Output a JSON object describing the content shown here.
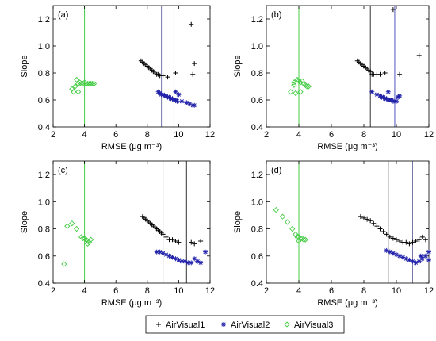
{
  "chart_data": [
    {
      "type": "scatter",
      "panel_label": "(a)",
      "xlabel": "RMSE (μg m⁻³)",
      "ylabel": "Slope",
      "xlim": [
        2,
        12
      ],
      "ylim": [
        0.4,
        1.3
      ],
      "xticks": [
        "2",
        "4",
        "6",
        "8",
        "10",
        "12"
      ],
      "yticks": [
        "0.4",
        "0.6",
        "0.8",
        "1.0",
        "1.2"
      ],
      "vlines": [
        {
          "x": 4.0,
          "color": "#44cc44"
        },
        {
          "x": 8.9,
          "color": "#7777aa"
        },
        {
          "x": 9.7,
          "color": "#7777aa"
        }
      ],
      "series": [
        {
          "marker": "plus",
          "color": "#000000",
          "points": [
            [
              7.6,
              0.89
            ],
            [
              7.7,
              0.88
            ],
            [
              7.8,
              0.87
            ],
            [
              7.9,
              0.86
            ],
            [
              8.0,
              0.85
            ],
            [
              8.1,
              0.84
            ],
            [
              8.2,
              0.83
            ],
            [
              8.3,
              0.82
            ],
            [
              8.4,
              0.81
            ],
            [
              8.5,
              0.8
            ],
            [
              8.6,
              0.79
            ],
            [
              8.7,
              0.79
            ],
            [
              8.8,
              0.78
            ],
            [
              9.0,
              0.78
            ],
            [
              9.3,
              0.77
            ],
            [
              9.8,
              0.8
            ],
            [
              10.8,
              1.16
            ],
            [
              10.9,
              0.79
            ],
            [
              11.0,
              0.87
            ]
          ]
        },
        {
          "marker": "star",
          "color": "#2222aa",
          "points": [
            [
              8.7,
              0.66
            ],
            [
              8.8,
              0.65
            ],
            [
              8.9,
              0.64
            ],
            [
              9.0,
              0.64
            ],
            [
              9.1,
              0.63
            ],
            [
              9.2,
              0.63
            ],
            [
              9.3,
              0.62
            ],
            [
              9.4,
              0.62
            ],
            [
              9.5,
              0.61
            ],
            [
              9.6,
              0.61
            ],
            [
              9.7,
              0.6
            ],
            [
              9.8,
              0.6
            ],
            [
              9.9,
              0.59
            ],
            [
              10.0,
              0.64
            ],
            [
              10.2,
              0.59
            ],
            [
              10.5,
              0.58
            ],
            [
              10.7,
              0.57
            ],
            [
              10.9,
              0.56
            ],
            [
              11.0,
              0.56
            ],
            [
              9.8,
              0.66
            ]
          ]
        },
        {
          "marker": "diamond",
          "color": "#44cc44",
          "points": [
            [
              3.2,
              0.68
            ],
            [
              3.3,
              0.66
            ],
            [
              3.4,
              0.7
            ],
            [
              3.5,
              0.75
            ],
            [
              3.6,
              0.72
            ],
            [
              3.6,
              0.66
            ],
            [
              3.7,
              0.73
            ],
            [
              3.8,
              0.72
            ],
            [
              3.9,
              0.72
            ],
            [
              4.0,
              0.73
            ],
            [
              4.1,
              0.72
            ],
            [
              4.2,
              0.72
            ],
            [
              4.3,
              0.72
            ],
            [
              4.4,
              0.72
            ],
            [
              4.5,
              0.72
            ],
            [
              4.6,
              0.72
            ]
          ]
        }
      ]
    },
    {
      "type": "scatter",
      "panel_label": "(b)",
      "xlabel": "RMSE (μg m⁻³)",
      "ylabel": "Slope",
      "xlim": [
        2,
        12
      ],
      "ylim": [
        0.4,
        1.3
      ],
      "xticks": [
        "2",
        "4",
        "6",
        "8",
        "10",
        "12"
      ],
      "yticks": [
        "0.4",
        "0.6",
        "0.8",
        "1.0",
        "1.2"
      ],
      "vlines": [
        {
          "x": 4.0,
          "color": "#44cc44"
        },
        {
          "x": 8.4,
          "color": "#333333"
        },
        {
          "x": 9.9,
          "color": "#5555bb"
        }
      ],
      "series": [
        {
          "marker": "plus",
          "color": "#000000",
          "points": [
            [
              7.6,
              0.89
            ],
            [
              7.7,
              0.88
            ],
            [
              7.8,
              0.87
            ],
            [
              7.9,
              0.86
            ],
            [
              8.0,
              0.85
            ],
            [
              8.1,
              0.84
            ],
            [
              8.2,
              0.83
            ],
            [
              8.3,
              0.82
            ],
            [
              8.4,
              0.81
            ],
            [
              8.5,
              0.79
            ],
            [
              8.6,
              0.79
            ],
            [
              8.8,
              0.79
            ],
            [
              9.0,
              0.79
            ],
            [
              9.3,
              0.8
            ],
            [
              9.8,
              1.27
            ],
            [
              10.2,
              0.79
            ],
            [
              11.4,
              0.93
            ]
          ]
        },
        {
          "marker": "star",
          "color": "#2222aa",
          "points": [
            [
              8.5,
              0.66
            ],
            [
              8.8,
              0.64
            ],
            [
              9.0,
              0.63
            ],
            [
              9.1,
              0.62
            ],
            [
              9.2,
              0.62
            ],
            [
              9.3,
              0.61
            ],
            [
              9.4,
              0.61
            ],
            [
              9.5,
              0.6
            ],
            [
              9.6,
              0.6
            ],
            [
              9.7,
              0.6
            ],
            [
              9.8,
              0.59
            ],
            [
              9.9,
              0.59
            ],
            [
              10.0,
              0.59
            ],
            [
              10.1,
              0.62
            ],
            [
              10.2,
              0.63
            ],
            [
              9.5,
              0.66
            ]
          ]
        },
        {
          "marker": "diamond",
          "color": "#44cc44",
          "points": [
            [
              3.5,
              0.66
            ],
            [
              3.7,
              0.71
            ],
            [
              3.8,
              0.65
            ],
            [
              3.9,
              0.75
            ],
            [
              4.0,
              0.74
            ],
            [
              4.1,
              0.73
            ],
            [
              4.2,
              0.74
            ],
            [
              4.3,
              0.72
            ],
            [
              4.4,
              0.71
            ],
            [
              4.5,
              0.7
            ],
            [
              4.1,
              0.66
            ],
            [
              4.6,
              0.7
            ],
            [
              3.7,
              0.73
            ]
          ]
        }
      ]
    },
    {
      "type": "scatter",
      "panel_label": "(c)",
      "xlabel": "RMSE (μg m⁻³)",
      "ylabel": "Slope",
      "xlim": [
        2,
        12
      ],
      "ylim": [
        0.4,
        1.3
      ],
      "xticks": [
        "2",
        "4",
        "6",
        "8",
        "10",
        "12"
      ],
      "yticks": [
        "0.4",
        "0.6",
        "0.8",
        "1.0",
        "1.2"
      ],
      "vlines": [
        {
          "x": 4.0,
          "color": "#44cc44"
        },
        {
          "x": 9.0,
          "color": "#7777aa"
        },
        {
          "x": 10.5,
          "color": "#333333"
        }
      ],
      "series": [
        {
          "marker": "plus",
          "color": "#000000",
          "points": [
            [
              7.7,
              0.89
            ],
            [
              7.8,
              0.88
            ],
            [
              7.9,
              0.87
            ],
            [
              8.0,
              0.86
            ],
            [
              8.1,
              0.85
            ],
            [
              8.2,
              0.84
            ],
            [
              8.3,
              0.83
            ],
            [
              8.4,
              0.82
            ],
            [
              8.5,
              0.81
            ],
            [
              8.6,
              0.8
            ],
            [
              8.7,
              0.79
            ],
            [
              8.8,
              0.78
            ],
            [
              8.9,
              0.77
            ],
            [
              9.0,
              0.76
            ],
            [
              9.2,
              0.74
            ],
            [
              9.4,
              0.72
            ],
            [
              9.6,
              0.72
            ],
            [
              9.8,
              0.71
            ],
            [
              10.0,
              0.7
            ],
            [
              10.8,
              0.7
            ],
            [
              11.0,
              0.69
            ],
            [
              11.4,
              0.71
            ]
          ]
        },
        {
          "marker": "star",
          "color": "#2222aa",
          "points": [
            [
              8.6,
              0.63
            ],
            [
              8.8,
              0.63
            ],
            [
              9.0,
              0.62
            ],
            [
              9.2,
              0.61
            ],
            [
              9.4,
              0.6
            ],
            [
              9.6,
              0.59
            ],
            [
              9.8,
              0.58
            ],
            [
              10.0,
              0.57
            ],
            [
              10.2,
              0.56
            ],
            [
              10.4,
              0.56
            ],
            [
              10.6,
              0.55
            ],
            [
              10.8,
              0.55
            ],
            [
              11.0,
              0.58
            ],
            [
              11.2,
              0.56
            ],
            [
              11.4,
              0.55
            ],
            [
              11.7,
              0.63
            ]
          ]
        },
        {
          "marker": "diamond",
          "color": "#44cc44",
          "points": [
            [
              2.7,
              0.54
            ],
            [
              2.9,
              0.82
            ],
            [
              3.2,
              0.84
            ],
            [
              3.5,
              0.8
            ],
            [
              3.8,
              0.74
            ],
            [
              3.9,
              0.73
            ],
            [
              4.0,
              0.73
            ],
            [
              4.1,
              0.72
            ],
            [
              4.2,
              0.71
            ],
            [
              4.3,
              0.7
            ],
            [
              4.4,
              0.72
            ],
            [
              4.2,
              0.69
            ]
          ]
        }
      ]
    },
    {
      "type": "scatter",
      "panel_label": "(d)",
      "xlabel": "RMSE (μg m⁻³)",
      "ylabel": "Slope",
      "xlim": [
        2,
        12
      ],
      "ylim": [
        0.4,
        1.3
      ],
      "xticks": [
        "2",
        "4",
        "6",
        "8",
        "10",
        "12"
      ],
      "yticks": [
        "0.4",
        "0.6",
        "0.8",
        "1.0",
        "1.2"
      ],
      "vlines": [
        {
          "x": 4.0,
          "color": "#44cc44"
        },
        {
          "x": 9.5,
          "color": "#333333"
        },
        {
          "x": 11.0,
          "color": "#7777aa"
        }
      ],
      "series": [
        {
          "marker": "plus",
          "color": "#000000",
          "points": [
            [
              7.8,
              0.89
            ],
            [
              8.0,
              0.88
            ],
            [
              8.2,
              0.87
            ],
            [
              8.4,
              0.86
            ],
            [
              8.6,
              0.84
            ],
            [
              8.8,
              0.82
            ],
            [
              9.0,
              0.8
            ],
            [
              9.2,
              0.78
            ],
            [
              9.4,
              0.76
            ],
            [
              9.6,
              0.74
            ],
            [
              9.8,
              0.73
            ],
            [
              10.0,
              0.72
            ],
            [
              10.2,
              0.71
            ],
            [
              10.4,
              0.7
            ],
            [
              10.6,
              0.7
            ],
            [
              10.8,
              0.69
            ],
            [
              11.0,
              0.7
            ],
            [
              11.2,
              0.71
            ],
            [
              11.4,
              0.72
            ],
            [
              11.6,
              0.74
            ],
            [
              11.8,
              0.72
            ]
          ]
        },
        {
          "marker": "star",
          "color": "#2222aa",
          "points": [
            [
              9.4,
              0.64
            ],
            [
              9.6,
              0.63
            ],
            [
              9.8,
              0.62
            ],
            [
              10.0,
              0.61
            ],
            [
              10.2,
              0.6
            ],
            [
              10.4,
              0.59
            ],
            [
              10.6,
              0.58
            ],
            [
              10.8,
              0.57
            ],
            [
              11.0,
              0.56
            ],
            [
              11.2,
              0.55
            ],
            [
              11.4,
              0.56
            ],
            [
              11.6,
              0.58
            ],
            [
              11.8,
              0.6
            ],
            [
              12.0,
              0.63
            ],
            [
              11.5,
              0.6
            ],
            [
              12.0,
              0.57
            ]
          ]
        },
        {
          "marker": "diamond",
          "color": "#44cc44",
          "points": [
            [
              2.6,
              0.94
            ],
            [
              3.0,
              0.89
            ],
            [
              3.3,
              0.85
            ],
            [
              3.6,
              0.8
            ],
            [
              3.8,
              0.76
            ],
            [
              3.9,
              0.74
            ],
            [
              4.0,
              0.74
            ],
            [
              4.1,
              0.73
            ],
            [
              4.2,
              0.73
            ],
            [
              4.3,
              0.72
            ],
            [
              4.4,
              0.72
            ],
            [
              4.0,
              0.71
            ]
          ]
        }
      ]
    }
  ],
  "legend": {
    "items": [
      {
        "label": "AirVisual1",
        "marker": "plus",
        "color": "#000000"
      },
      {
        "label": "AirVisual2",
        "marker": "star",
        "color": "#2222aa"
      },
      {
        "label": "AirVisual3",
        "marker": "diamond",
        "color": "#44cc44"
      }
    ]
  }
}
